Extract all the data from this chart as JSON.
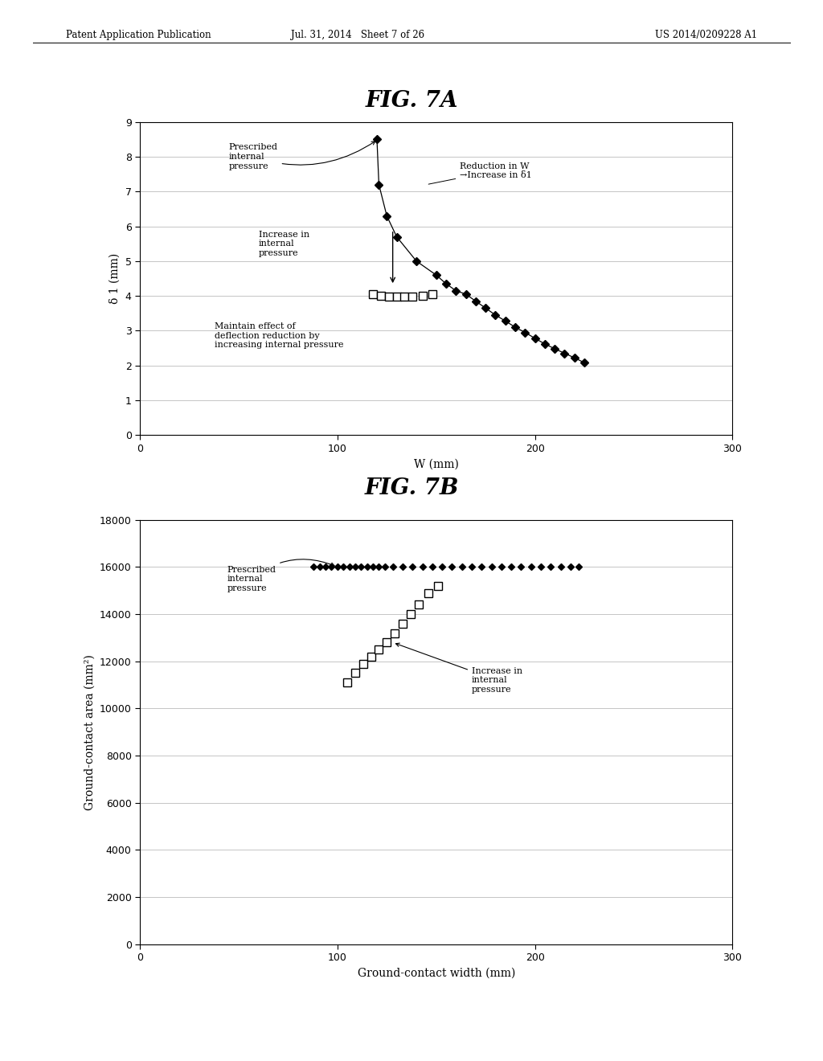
{
  "fig7a_title": "FIG. 7A",
  "fig7b_title": "FIG. 7B",
  "header_left": "Patent Application Publication",
  "header_mid": "Jul. 31, 2014   Sheet 7 of 26",
  "header_right": "US 2014/0209228 A1",
  "fig7a": {
    "diamond_x": [
      120,
      121,
      125,
      130,
      140,
      150,
      155,
      160,
      165,
      170,
      175,
      180,
      185,
      190,
      195,
      200,
      205,
      210,
      215,
      220,
      225
    ],
    "diamond_y": [
      8.5,
      7.2,
      6.3,
      5.7,
      5.0,
      4.6,
      4.35,
      4.15,
      4.05,
      3.85,
      3.65,
      3.45,
      3.28,
      3.1,
      2.95,
      2.78,
      2.62,
      2.48,
      2.35,
      2.22,
      2.08
    ],
    "square_x": [
      118,
      122,
      126,
      130,
      134,
      138,
      143,
      148
    ],
    "square_y": [
      4.05,
      4.0,
      3.98,
      3.97,
      3.97,
      3.98,
      4.0,
      4.05
    ],
    "xlabel": "W (mm)",
    "ylabel": "δ 1 (mm)",
    "xlim": [
      0,
      300
    ],
    "ylim": [
      0,
      9
    ],
    "xticks": [
      0,
      100,
      200,
      300
    ],
    "yticks": [
      0,
      1,
      2,
      3,
      4,
      5,
      6,
      7,
      8,
      9
    ]
  },
  "fig7b": {
    "diamond_x": [
      88,
      91,
      94,
      97,
      100,
      103,
      106,
      109,
      112,
      115,
      118,
      121,
      124,
      128,
      133,
      138,
      143,
      148,
      153,
      158,
      163,
      168,
      173,
      178,
      183,
      188,
      193,
      198,
      203,
      208,
      213,
      218,
      222
    ],
    "diamond_y": [
      16000,
      16000,
      16000,
      16000,
      16000,
      16000,
      16000,
      16000,
      16000,
      16000,
      16000,
      16000,
      16000,
      16000,
      16000,
      16000,
      16000,
      16000,
      16000,
      16000,
      16000,
      16000,
      16000,
      16000,
      16000,
      16000,
      16000,
      16000,
      16000,
      16000,
      16000,
      16000,
      16000
    ],
    "square_x": [
      105,
      109,
      113,
      117,
      121,
      125,
      129,
      133,
      137,
      141,
      146,
      151
    ],
    "square_y": [
      11100,
      11500,
      11900,
      12200,
      12500,
      12800,
      13200,
      13600,
      14000,
      14400,
      14900,
      15200
    ],
    "xlabel": "Ground-contact width (mm)",
    "ylabel": "Ground-contact area (mm²)",
    "xlim": [
      0,
      300
    ],
    "ylim": [
      0,
      18000
    ],
    "xticks": [
      0,
      100,
      200,
      300
    ],
    "yticks": [
      0,
      2000,
      4000,
      6000,
      8000,
      10000,
      12000,
      14000,
      16000,
      18000
    ]
  },
  "background_color": "#ffffff",
  "plot_bg_color": "#ffffff",
  "grid_color": "#bbbbbb",
  "text_color": "#000000",
  "diamond_color": "#000000",
  "square_facecolor": "#ffffff",
  "square_edgecolor": "#000000"
}
